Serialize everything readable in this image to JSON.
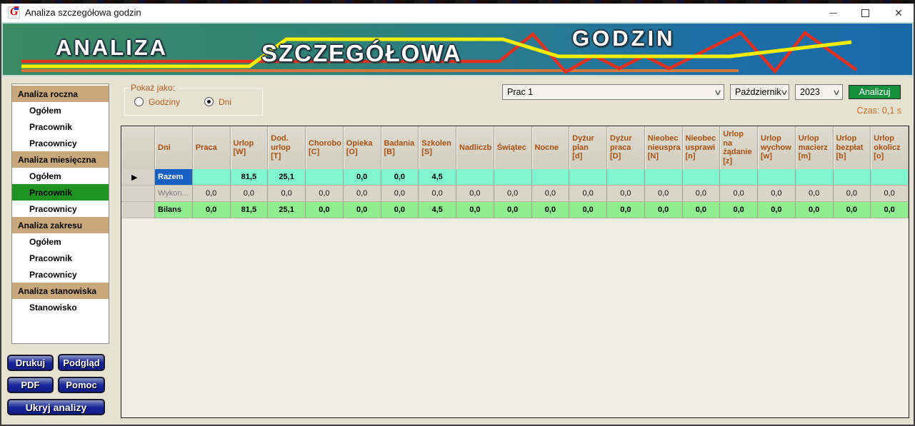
{
  "window": {
    "title": "Analiza szczegółowa godzin"
  },
  "banner": {
    "words": [
      "ANALIZA",
      "SZCZEGÓŁOWA",
      "GODZIN"
    ]
  },
  "sidebar": {
    "items": [
      {
        "label": "Analiza roczna",
        "type": "header"
      },
      {
        "label": "Ogółem",
        "type": "item"
      },
      {
        "label": "Pracownik",
        "type": "item"
      },
      {
        "label": "Pracownicy",
        "type": "item"
      },
      {
        "label": "Analiza miesięczna",
        "type": "header"
      },
      {
        "label": "Ogółem",
        "type": "item"
      },
      {
        "label": "Pracownik",
        "type": "item",
        "selected": true
      },
      {
        "label": "Pracownicy",
        "type": "item"
      },
      {
        "label": "Analiza zakresu",
        "type": "header"
      },
      {
        "label": "Ogółem",
        "type": "item"
      },
      {
        "label": "Pracownik",
        "type": "item"
      },
      {
        "label": "Pracownicy",
        "type": "item"
      },
      {
        "label": "Analiza stanowiska",
        "type": "header"
      },
      {
        "label": "Stanowisko",
        "type": "item"
      }
    ],
    "buttons": {
      "drukuj": "Drukuj",
      "podglad": "Podgląd",
      "pdf": "PDF",
      "pomoc": "Pomoc",
      "ukryj": "Ukryj analizy"
    }
  },
  "controls": {
    "show_as": {
      "label": "Pokaż jako:",
      "options": [
        {
          "label": "Godziny",
          "selected": false
        },
        {
          "label": "Dni",
          "selected": true
        }
      ]
    },
    "employee_select": "Prac 1",
    "month_select": "Październik",
    "year_select": "2023",
    "analyze_button": "Analizuj",
    "time_label": "Czas: 0,1 s"
  },
  "grid": {
    "columns": [
      "Dni",
      "Praca",
      "Urlop\n[W]",
      "Dod.\nurlop\n[T]",
      "Chorobo\n[C]",
      "Opieka\n[O]",
      "Badania\n[B]",
      "Szkolen\n[S]",
      "Nadliczb",
      "Świątec",
      "Nocne",
      "Dyżur\nplan\n[d]",
      "Dyżur\npraca\n[D]",
      "Nieobec\nnieuspra\n[N]",
      "Nieobec\nusprawi\n[n]",
      "Urlop\nna\nżądanie\n[z]",
      "Urlop\nwychow\n[w]",
      "Urlop\nmacierz\n[m]",
      "Urlop\nbezpłat\n[b]",
      "Urlop\nokolicz\n[o]"
    ],
    "rows": [
      {
        "label": "Razem",
        "style": "razem",
        "selected": true,
        "cells": [
          "",
          "81,5",
          "25,1",
          "",
          "0,0",
          "0,0",
          "4,5",
          "",
          "",
          "",
          "",
          "",
          "",
          "",
          "",
          "",
          "",
          "",
          ""
        ]
      },
      {
        "label": "Wykon...",
        "style": "wykon",
        "selected": false,
        "cells": [
          "0,0",
          "0,0",
          "0,0",
          "0,0",
          "0,0",
          "0,0",
          "0,0",
          "0,0",
          "0,0",
          "0,0",
          "0,0",
          "0,0",
          "0,0",
          "0,0",
          "0,0",
          "0,0",
          "0,0",
          "0,0",
          "0,0"
        ]
      },
      {
        "label": "Bilans",
        "style": "bilans",
        "selected": false,
        "cells": [
          "0,0",
          "81,5",
          "25,1",
          "0,0",
          "0,0",
          "0,0",
          "4,5",
          "0,0",
          "0,0",
          "0,0",
          "0,0",
          "0,0",
          "0,0",
          "0,0",
          "0,0",
          "0,0",
          "0,0",
          "0,0",
          "0,0"
        ]
      }
    ]
  },
  "colors": {
    "banner_green": "#3a8a62",
    "banner_blue": "#1a6aa8",
    "banner_line_red": "#e03020",
    "banner_line_yellow": "#f2ee00",
    "banner_line_orange": "#d4763c",
    "menu_header_tan": "#c9a87c",
    "menu_selected_green": "#1f9222",
    "button_navy": "#18269c",
    "analyze_green": "#15913d",
    "row_razem_blue": "#1660c4",
    "row_razem_aqua": "#81f7cf",
    "row_bilans_green": "#90ee90",
    "header_text_brown": "#a8500f",
    "accent_text_orange": "#b55a1e"
  }
}
